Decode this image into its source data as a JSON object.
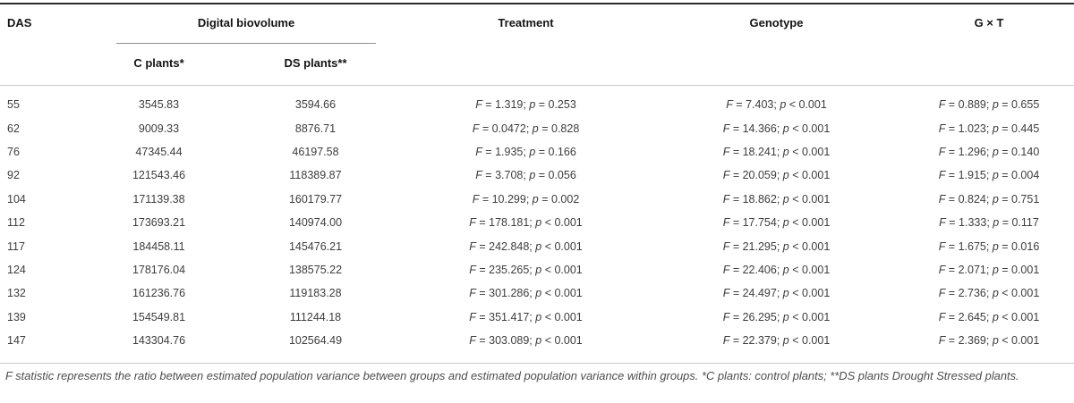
{
  "table": {
    "columns": {
      "das": "DAS",
      "digital_biovolume_group": "Digital biovolume",
      "c_plants": "C plants*",
      "ds_plants": "DS plants**",
      "treatment": "Treatment",
      "genotype": "Genotype",
      "g_x_t": "G × T"
    },
    "rows": [
      {
        "das": "55",
        "c_plants": "3545.83",
        "ds_plants": "3594.66",
        "treatment": "F = 1.319; p = 0.253",
        "genotype": "F = 7.403; p < 0.001",
        "g_x_t": "F = 0.889; p = 0.655"
      },
      {
        "das": "62",
        "c_plants": "9009.33",
        "ds_plants": "8876.71",
        "treatment": "F = 0.0472; p = 0.828",
        "genotype": "F = 14.366; p < 0.001",
        "g_x_t": "F = 1.023; p = 0.445"
      },
      {
        "das": "76",
        "c_plants": "47345.44",
        "ds_plants": "46197.58",
        "treatment": "F = 1.935; p = 0.166",
        "genotype": "F = 18.241; p < 0.001",
        "g_x_t": "F = 1.296; p = 0.140"
      },
      {
        "das": "92",
        "c_plants": "121543.46",
        "ds_plants": "118389.87",
        "treatment": "F = 3.708; p = 0.056",
        "genotype": "F = 20.059; p < 0.001",
        "g_x_t": "F = 1.915; p = 0.004"
      },
      {
        "das": "104",
        "c_plants": "171139.38",
        "ds_plants": "160179.77",
        "treatment": "F = 10.299; p = 0.002",
        "genotype": "F = 18.862; p < 0.001",
        "g_x_t": "F = 0.824; p = 0.751"
      },
      {
        "das": "112",
        "c_plants": "173693.21",
        "ds_plants": "140974.00",
        "treatment": "F = 178.181; p < 0.001",
        "genotype": "F = 17.754; p < 0.001",
        "g_x_t": "F = 1.333; p = 0.117"
      },
      {
        "das": "117",
        "c_plants": "184458.11",
        "ds_plants": "145476.21",
        "treatment": "F = 242.848; p < 0.001",
        "genotype": "F = 21.295; p < 0.001",
        "g_x_t": "F = 1.675; p = 0.016"
      },
      {
        "das": "124",
        "c_plants": "178176.04",
        "ds_plants": "138575.22",
        "treatment": "F = 235.265; p < 0.001",
        "genotype": "F = 22.406; p < 0.001",
        "g_x_t": "F = 2.071; p = 0.001"
      },
      {
        "das": "132",
        "c_plants": "161236.76",
        "ds_plants": "119183.28",
        "treatment": "F = 301.286; p < 0.001",
        "genotype": "F = 24.497; p < 0.001",
        "g_x_t": "F = 2.736; p < 0.001"
      },
      {
        "das": "139",
        "c_plants": "154549.81",
        "ds_plants": "111244.18",
        "treatment": "F = 351.417; p < 0.001",
        "genotype": "F = 26.295; p < 0.001",
        "g_x_t": "F = 2.645; p < 0.001"
      },
      {
        "das": "147",
        "c_plants": "143304.76",
        "ds_plants": "102564.49",
        "treatment": "F = 303.089; p < 0.001",
        "genotype": "F = 22.379; p < 0.001",
        "g_x_t": "F = 2.369; p < 0.001"
      }
    ]
  },
  "footnote": "F statistic represents the ratio between estimated population variance between groups and estimated population variance within groups. *C plants: control plants; **DS plants Drought Stressed plants."
}
